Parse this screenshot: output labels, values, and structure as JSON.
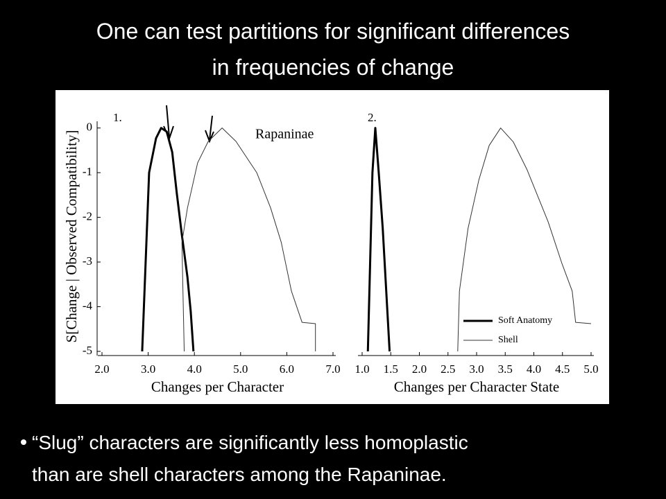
{
  "title": [
    "One can test partitions for significant differences",
    "in frequencies of change"
  ],
  "bullet": [
    "“Slug” characters are significantly less homoplastic",
    "than are shell characters among the Rapaninae."
  ],
  "chart_data": [
    {
      "type": "line",
      "panel": "1.",
      "annotation": "Rapaninae",
      "ylabel": "S[Change | Observed Compatibility]",
      "xlabel": "Changes per Character",
      "xlim": [
        2,
        7
      ],
      "ylim": [
        -5,
        0.15
      ],
      "xticks": [
        {
          "value": 2,
          "label": "2.0"
        },
        {
          "value": 3,
          "label": "3.0"
        },
        {
          "value": 4,
          "label": "4.0"
        },
        {
          "value": 5,
          "label": "5.0"
        },
        {
          "value": 6,
          "label": "6.0"
        },
        {
          "value": 7,
          "label": "7.0"
        }
      ],
      "yticks": [
        0,
        -1,
        -2,
        -3,
        -4,
        -5
      ],
      "series": [
        {
          "name": "Soft Anatomy",
          "color": "#000000",
          "width": 3,
          "x": [
            2.87,
            3.02,
            3.17,
            3.28,
            3.4,
            3.52,
            3.62,
            3.73,
            3.85,
            3.92,
            3.98
          ],
          "values": [
            -5,
            -1.0,
            -0.23,
            0,
            -0.08,
            -0.54,
            -1.47,
            -2.4,
            -3.34,
            -4.1,
            -5
          ]
        },
        {
          "name": "Shell",
          "color": "#333333",
          "width": 1,
          "x": [
            3.78,
            3.73,
            3.85,
            4.07,
            4.3,
            4.6,
            4.9,
            5.35,
            5.65,
            5.88,
            6.1,
            6.33,
            6.62,
            6.62
          ],
          "values": [
            -5,
            -2.56,
            -1.79,
            -0.78,
            -0.3,
            0,
            -0.3,
            -1.0,
            -1.79,
            -2.56,
            -3.65,
            -4.35,
            -4.38,
            -5
          ]
        }
      ]
    },
    {
      "type": "line",
      "panel": "2.",
      "xlabel": "Changes per Character State",
      "xlim": [
        1,
        5
      ],
      "ylim": [
        -5,
        0.15
      ],
      "legend": "bottom-right",
      "xticks": [
        {
          "value": 1,
          "label": "1.0"
        },
        1.5,
        {
          "value": 2,
          "label": "2.0"
        },
        2.5,
        {
          "value": 3,
          "label": "3.0"
        },
        3.5,
        {
          "value": 4,
          "label": "4.0"
        },
        4.5,
        {
          "value": 5,
          "label": "5.0"
        }
      ],
      "series": [
        {
          "name": "Soft Anatomy",
          "color": "#000000",
          "width": 3,
          "x": [
            1.1,
            1.18,
            1.23,
            1.29,
            1.36,
            1.48
          ],
          "values": [
            -5,
            -1,
            0,
            -1,
            -2.25,
            -5
          ]
        },
        {
          "name": "Shell",
          "color": "#333333",
          "width": 1,
          "x": [
            2.67,
            2.7,
            2.85,
            3.04,
            3.22,
            3.42,
            3.64,
            3.88,
            4.25,
            4.49,
            4.67,
            4.73,
            5.0
          ],
          "values": [
            -5,
            -3.65,
            -2.25,
            -1.16,
            -0.39,
            0,
            -0.31,
            -0.93,
            -2.1,
            -3.03,
            -3.65,
            -4.35,
            -4.38
          ]
        }
      ]
    }
  ]
}
